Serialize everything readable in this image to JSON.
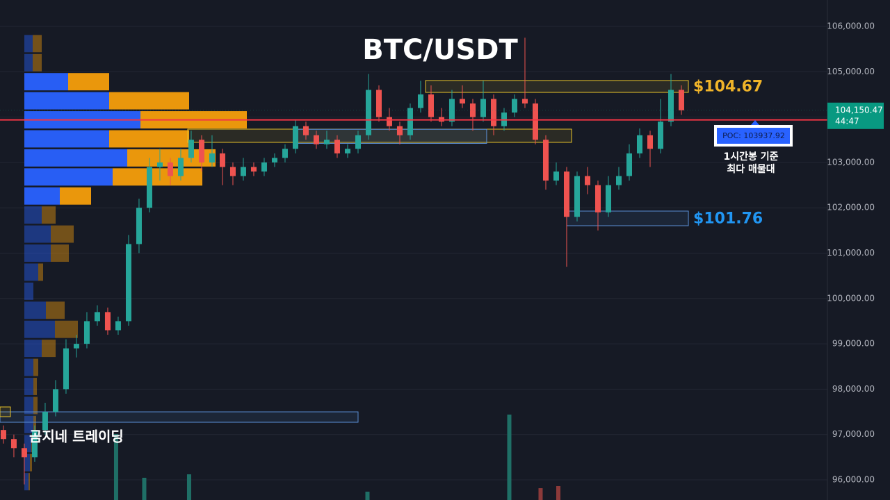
{
  "chart_data": {
    "type": "candlestick",
    "title": "BTC/USDT",
    "open": [
      97100,
      96900,
      96700,
      96500,
      97100,
      97500,
      98000,
      98900,
      99000,
      99500,
      99700,
      99300,
      99500,
      101200,
      102000,
      102900,
      103000,
      102700,
      103100,
      103500,
      103000,
      103200,
      102900,
      102700,
      102900,
      102800,
      103000,
      103100,
      103300,
      103800,
      103600,
      103400,
      103500,
      103200,
      103300,
      103600,
      104600,
      104000,
      103800,
      103600,
      104200,
      104500,
      104000,
      103900,
      104400,
      104300,
      104000,
      104400,
      103800,
      104100,
      104400,
      104300,
      103500,
      102600,
      102800,
      101800,
      102700,
      102500,
      101900,
      102500,
      102700,
      103200,
      103600,
      103300,
      103900,
      104600
    ],
    "high": [
      97200,
      97000,
      96800,
      97200,
      97700,
      98200,
      99100,
      99200,
      99700,
      99850,
      99800,
      99600,
      101400,
      102200,
      103100,
      103300,
      103100,
      103300,
      103700,
      103600,
      103600,
      103300,
      103000,
      103100,
      103000,
      103100,
      103200,
      103400,
      103950,
      103900,
      103700,
      103700,
      103600,
      103400,
      103700,
      104950,
      104700,
      104200,
      103900,
      104300,
      104800,
      104700,
      104200,
      104600,
      104700,
      104400,
      104800,
      104500,
      104200,
      104500,
      105750,
      104400,
      103600,
      103000,
      102900,
      102800,
      102900,
      102600,
      102700,
      102900,
      103400,
      103750,
      103700,
      104400,
      104950,
      104700
    ],
    "low": [
      96800,
      96500,
      95900,
      96400,
      97000,
      97400,
      97900,
      98700,
      98900,
      99400,
      99200,
      99200,
      99400,
      101000,
      101900,
      102600,
      102500,
      102600,
      103000,
      102800,
      102900,
      102500,
      102500,
      102600,
      102700,
      102700,
      102900,
      103000,
      103200,
      103500,
      103300,
      103300,
      103100,
      103100,
      103200,
      103500,
      103900,
      103700,
      103400,
      103500,
      104100,
      103900,
      103800,
      103800,
      104200,
      103700,
      103900,
      103600,
      103700,
      104000,
      104200,
      103400,
      102400,
      102500,
      100700,
      101700,
      102300,
      101500,
      101800,
      102400,
      102600,
      103100,
      102900,
      103200,
      103800,
      104050
    ],
    "close": [
      96900,
      96700,
      96500,
      97100,
      97500,
      98000,
      98900,
      99000,
      99500,
      99700,
      99300,
      99500,
      101200,
      102000,
      102900,
      103000,
      102700,
      103100,
      103500,
      103000,
      103200,
      102900,
      102700,
      102900,
      102800,
      103000,
      103100,
      103300,
      103800,
      103600,
      103400,
      103500,
      103200,
      103300,
      103600,
      104600,
      104000,
      103800,
      103600,
      104200,
      104500,
      104000,
      103900,
      104400,
      104300,
      104000,
      104400,
      103800,
      104100,
      104400,
      104300,
      103500,
      102600,
      102800,
      101800,
      102700,
      102500,
      101900,
      102500,
      102700,
      103200,
      103600,
      103300,
      103900,
      104600,
      104150
    ],
    "up_color": "#26a69a",
    "down_color": "#ef5350",
    "xlim": [
      -0.33,
      79
    ],
    "ylim": [
      95556,
      106582
    ],
    "yticks": [
      {
        "value": 96000,
        "label": "96,000.00"
      },
      {
        "value": 97000,
        "label": "97,000.00"
      },
      {
        "value": 98000,
        "label": "98,000.00"
      },
      {
        "value": 99000,
        "label": "99,000.00"
      },
      {
        "value": 100000,
        "label": "100,000.00"
      },
      {
        "value": 101000,
        "label": "101,000.00"
      },
      {
        "value": 102000,
        "label": "102,000.00"
      },
      {
        "value": 103000,
        "label": "103,000.00"
      },
      {
        "value": 104000,
        "label": "104,000.00"
      },
      {
        "value": 105000,
        "label": "105,000.00"
      },
      {
        "value": 106000,
        "label": "106,000.00"
      }
    ],
    "grid": true,
    "volume_profile": {
      "prices": [
        105620,
        105200,
        104780,
        104360,
        103940,
        103520,
        103100,
        102680,
        102260,
        101840,
        101420,
        101000,
        100580,
        100160,
        99740,
        99320,
        98900,
        98480,
        98060,
        97640,
        97220,
        96800,
        96380,
        95960
      ],
      "buy": [
        12,
        12,
        63,
        122,
        167,
        122,
        148,
        127,
        51,
        25,
        38,
        38,
        20,
        13,
        31,
        44,
        25,
        13,
        13,
        13,
        13,
        10,
        8,
        6
      ],
      "sell": [
        13,
        13,
        59,
        115,
        153,
        115,
        127,
        129,
        45,
        20,
        33,
        26,
        7,
        0,
        27,
        33,
        20,
        7,
        5,
        6,
        4,
        5,
        3,
        2
      ],
      "xlim": [
        -35,
        1155
      ],
      "value_area": [
        102050,
        105000
      ],
      "buy_color": "#2962ff",
      "sell_color": "#f59e0b"
    },
    "zones": [
      {
        "low": 104545,
        "high": 104806,
        "x_from": 40.47,
        "x_to": 65.67,
        "color": "#e8c32a",
        "label": "$104.67"
      },
      {
        "low": 101605,
        "high": 101927,
        "x_from": 54,
        "x_to": 65.67,
        "color": "#5b8fd6",
        "label": "$101.76"
      },
      {
        "low": 103443,
        "high": 103734,
        "x_from": 17.67,
        "x_to": 54.47,
        "color": "#e8c32a"
      },
      {
        "low": 103420,
        "high": 103730,
        "x_from": 28,
        "x_to": 46.33,
        "color": "#5b8fd6"
      },
      {
        "low": 97271,
        "high": 97500,
        "x_from": -0.33,
        "x_to": 34,
        "color": "#5b8fd6"
      },
      {
        "low": 97394,
        "high": 97608,
        "x_from": -0.33,
        "x_to": 0.67,
        "color": "#e8c32a"
      }
    ],
    "poc": {
      "value": 103937.92,
      "label": "POC: 103937.92",
      "color": "#f23645",
      "box_color": "#2962ff"
    },
    "current_price": {
      "value": 104150.47,
      "label": "104,150.47",
      "countdown": "44:47",
      "color": "#089981"
    },
    "volume": {
      "x": [
        10.8,
        13.5,
        17.8,
        34.9,
        48.5,
        51.5,
        53.2
      ],
      "values": [
        950,
        320,
        370,
        120,
        1230,
        170,
        200
      ],
      "colors": [
        "#1f6f66",
        "#1f6f66",
        "#1f6f66",
        "#1f6f66",
        "#1f6f66",
        "#8c3a3a",
        "#8c3a3a"
      ],
      "ylim": [
        0,
        7200
      ]
    },
    "note": [
      "1시간봉 기준",
      "최다 매물대"
    ],
    "watermark": "곰지네 트레이딩"
  }
}
